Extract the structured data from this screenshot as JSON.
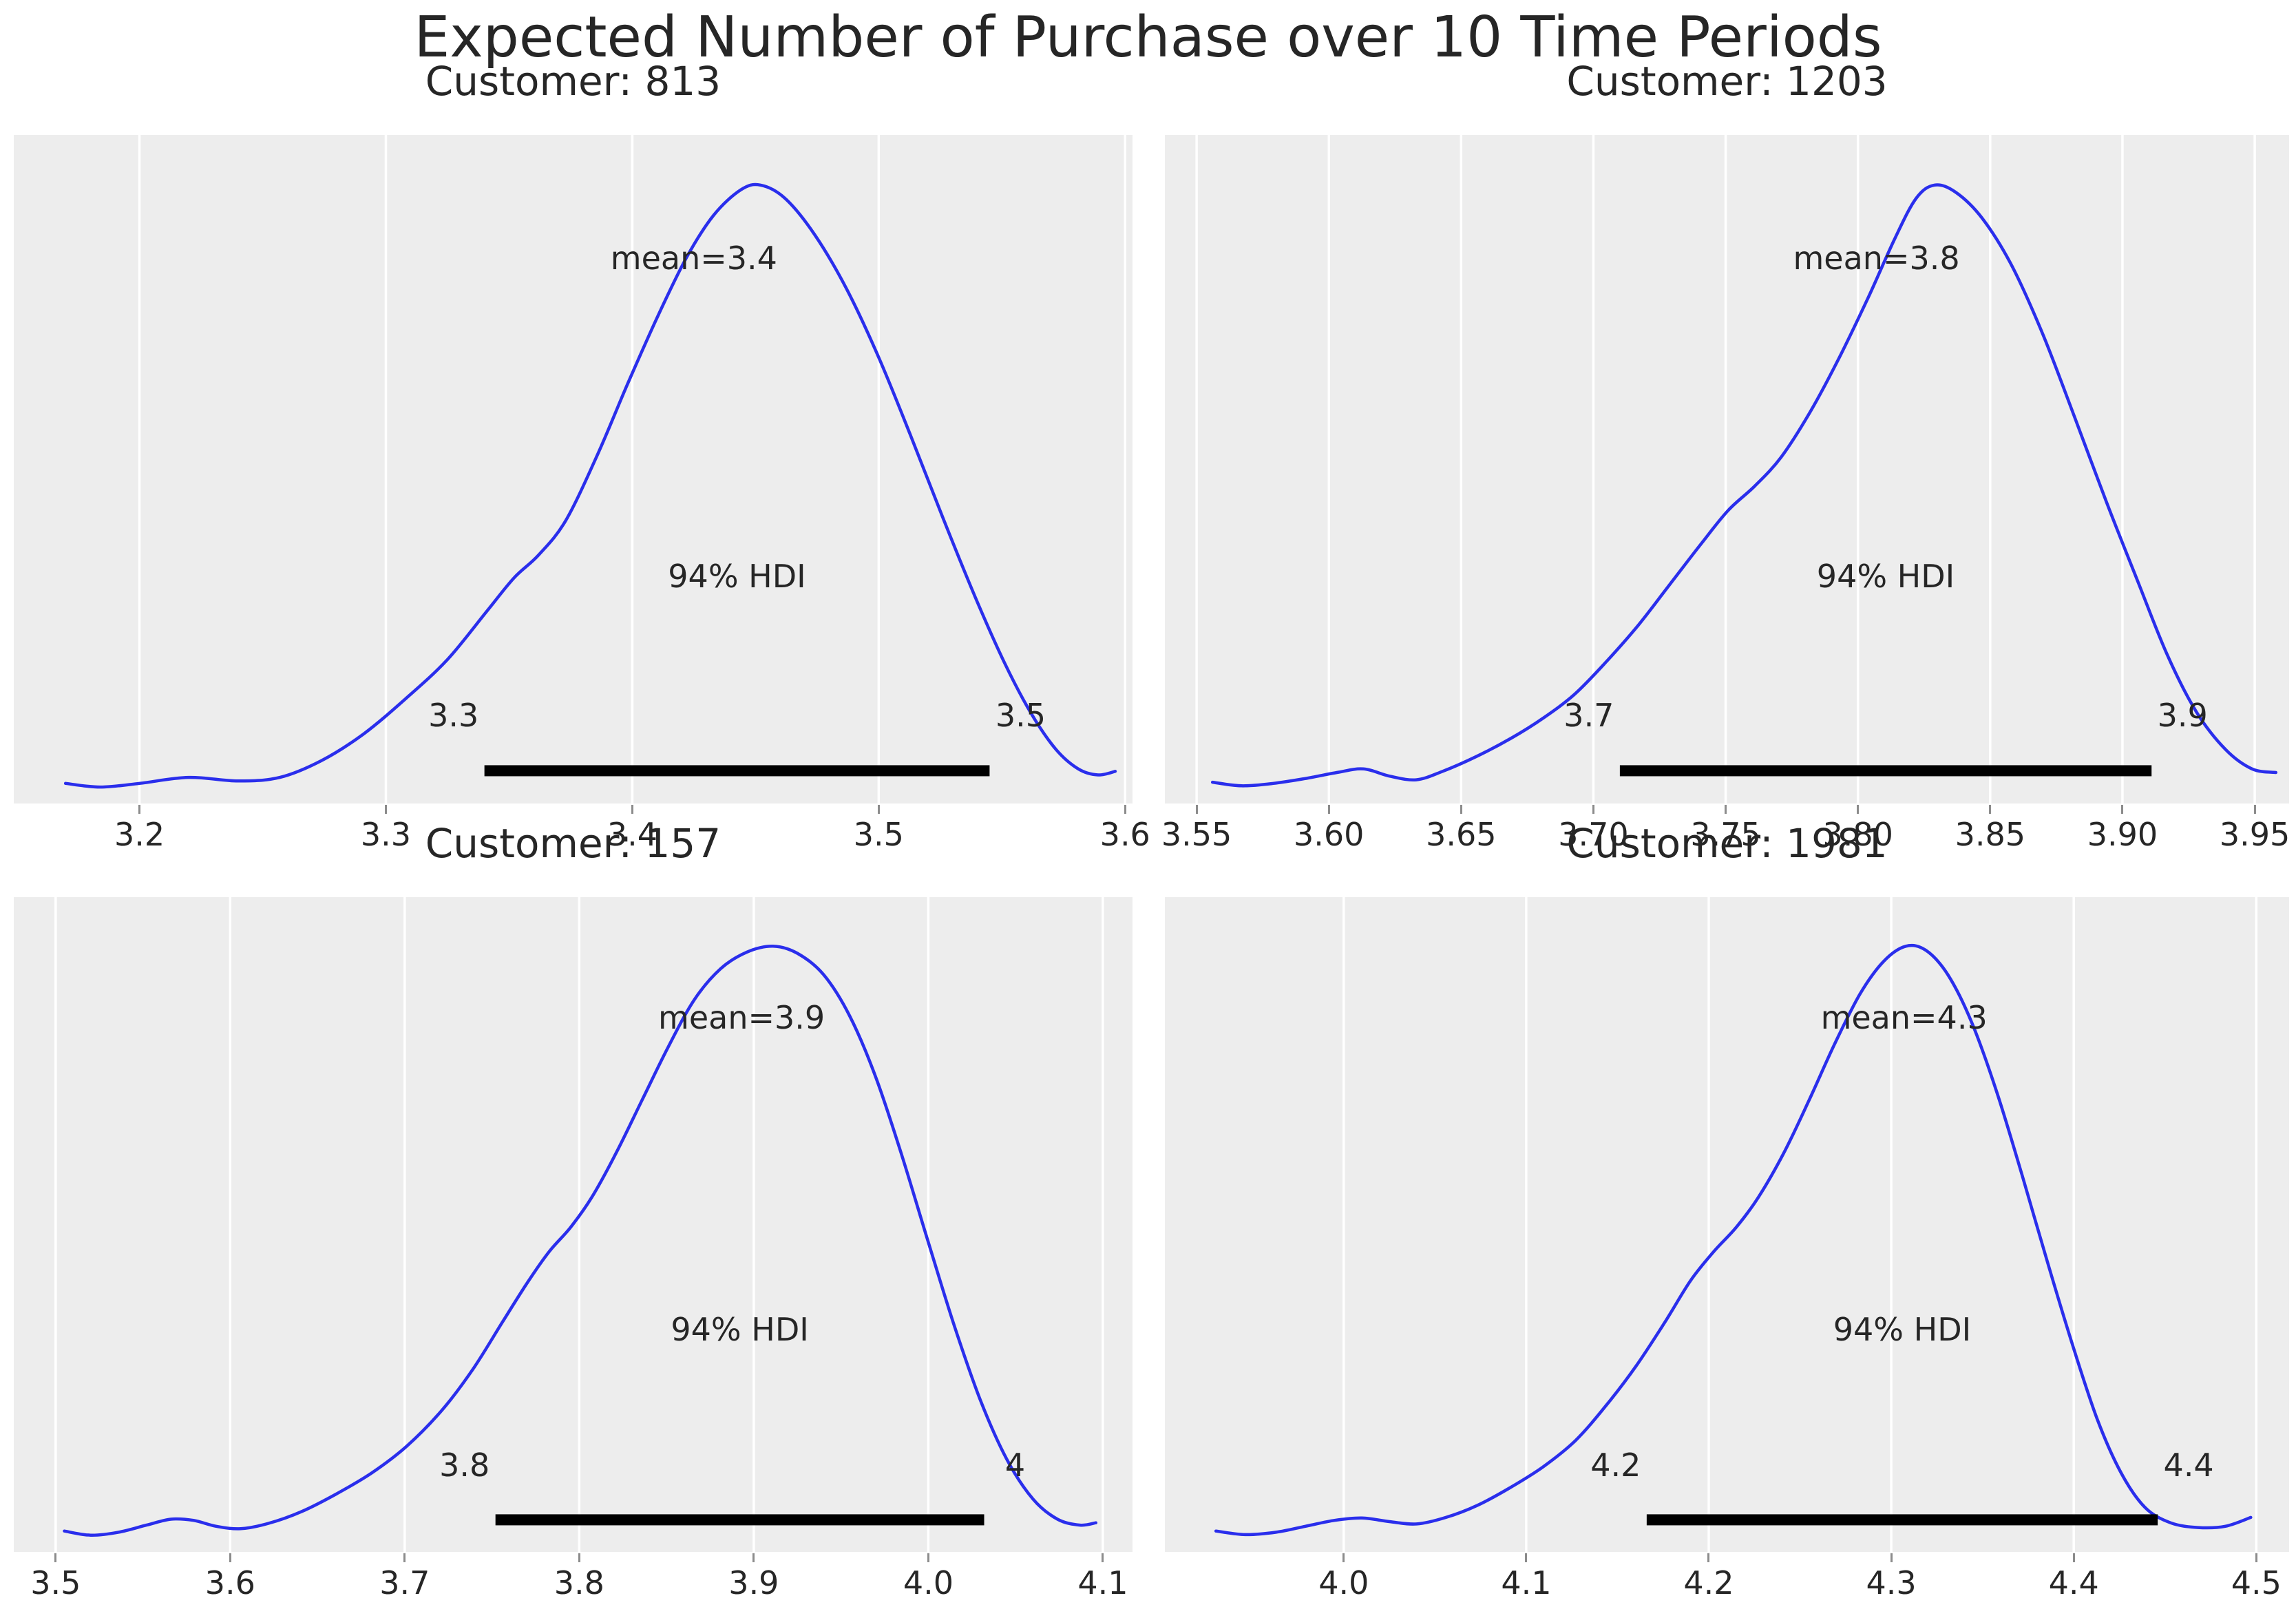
{
  "title": "Expected Number of Purchase over 10 Time Periods",
  "hdi_text": "94% HDI",
  "colors": {
    "curve": "#2a2eec",
    "panel_bg": "#ededed",
    "grid": "#ffffff",
    "text": "#262626",
    "tick_mark": "#8c8c8c",
    "hdi_bar": "#000000",
    "page_bg": "#ffffff"
  },
  "chart_data": [
    {
      "type": "line",
      "customer": "813",
      "title": "Customer: 813",
      "mean": 3.4,
      "mean_label": "mean=3.4",
      "mean_label_x": 3.425,
      "hdi_94": [
        3.34,
        3.545
      ],
      "hdi_low_label": "3.3",
      "hdi_high_label": "3.5",
      "xlim": [
        3.149,
        3.603
      ],
      "xticks": [
        {
          "v": 3.2,
          "label": "3.2"
        },
        {
          "v": 3.3,
          "label": "3.3"
        },
        {
          "v": 3.4,
          "label": "3.4"
        },
        {
          "v": 3.5,
          "label": "3.5"
        },
        {
          "v": 3.6,
          "label": "3.6"
        }
      ],
      "curve": [
        [
          3.17,
          0.01
        ],
        [
          3.184,
          0.004
        ],
        [
          3.2,
          0.01
        ],
        [
          3.22,
          0.02
        ],
        [
          3.24,
          0.014
        ],
        [
          3.257,
          0.02
        ],
        [
          3.274,
          0.048
        ],
        [
          3.291,
          0.092
        ],
        [
          3.308,
          0.15
        ],
        [
          3.325,
          0.215
        ],
        [
          3.341,
          0.295
        ],
        [
          3.352,
          0.35
        ],
        [
          3.362,
          0.388
        ],
        [
          3.373,
          0.445
        ],
        [
          3.386,
          0.555
        ],
        [
          3.398,
          0.67
        ],
        [
          3.41,
          0.78
        ],
        [
          3.422,
          0.88
        ],
        [
          3.433,
          0.95
        ],
        [
          3.444,
          0.992
        ],
        [
          3.452,
          1.0
        ],
        [
          3.462,
          0.978
        ],
        [
          3.474,
          0.918
        ],
        [
          3.487,
          0.828
        ],
        [
          3.5,
          0.715
        ],
        [
          3.513,
          0.585
        ],
        [
          3.526,
          0.45
        ],
        [
          3.539,
          0.32
        ],
        [
          3.551,
          0.21
        ],
        [
          3.562,
          0.125
        ],
        [
          3.572,
          0.066
        ],
        [
          3.581,
          0.034
        ],
        [
          3.589,
          0.024
        ],
        [
          3.596,
          0.03
        ]
      ]
    },
    {
      "type": "line",
      "customer": "1203",
      "title": "Customer: 1203",
      "mean": 3.8,
      "mean_label": "mean=3.8",
      "mean_label_x": 3.807,
      "hdi_94": [
        3.71,
        3.911
      ],
      "hdi_low_label": "3.7",
      "hdi_high_label": "3.9",
      "xlim": [
        3.538,
        3.963
      ],
      "xticks": [
        {
          "v": 3.55,
          "label": "3.55"
        },
        {
          "v": 3.6,
          "label": "3.60"
        },
        {
          "v": 3.65,
          "label": "3.65"
        },
        {
          "v": 3.7,
          "label": "3.70"
        },
        {
          "v": 3.75,
          "label": "3.75"
        },
        {
          "v": 3.8,
          "label": "3.80"
        },
        {
          "v": 3.85,
          "label": "3.85"
        },
        {
          "v": 3.9,
          "label": "3.90"
        },
        {
          "v": 3.95,
          "label": "3.95"
        }
      ],
      "curve": [
        [
          3.556,
          0.012
        ],
        [
          3.567,
          0.006
        ],
        [
          3.579,
          0.01
        ],
        [
          3.591,
          0.018
        ],
        [
          3.603,
          0.028
        ],
        [
          3.613,
          0.034
        ],
        [
          3.623,
          0.022
        ],
        [
          3.633,
          0.016
        ],
        [
          3.643,
          0.03
        ],
        [
          3.656,
          0.055
        ],
        [
          3.669,
          0.085
        ],
        [
          3.681,
          0.118
        ],
        [
          3.693,
          0.158
        ],
        [
          3.705,
          0.212
        ],
        [
          3.717,
          0.272
        ],
        [
          3.729,
          0.34
        ],
        [
          3.741,
          0.408
        ],
        [
          3.751,
          0.462
        ],
        [
          3.761,
          0.502
        ],
        [
          3.771,
          0.55
        ],
        [
          3.782,
          0.625
        ],
        [
          3.793,
          0.715
        ],
        [
          3.804,
          0.815
        ],
        [
          3.814,
          0.912
        ],
        [
          3.822,
          0.978
        ],
        [
          3.829,
          1.0
        ],
        [
          3.837,
          0.988
        ],
        [
          3.847,
          0.945
        ],
        [
          3.858,
          0.868
        ],
        [
          3.87,
          0.752
        ],
        [
          3.882,
          0.615
        ],
        [
          3.894,
          0.475
        ],
        [
          3.906,
          0.342
        ],
        [
          3.917,
          0.222
        ],
        [
          3.928,
          0.128
        ],
        [
          3.939,
          0.066
        ],
        [
          3.949,
          0.034
        ],
        [
          3.958,
          0.028
        ]
      ]
    },
    {
      "type": "line",
      "customer": "157",
      "title": "Customer: 157",
      "mean": 3.9,
      "mean_label": "mean=3.9",
      "mean_label_x": 3.893,
      "hdi_94": [
        3.752,
        4.032
      ],
      "hdi_low_label": "3.8",
      "hdi_high_label": "4",
      "xlim": [
        3.476,
        4.117
      ],
      "xticks": [
        {
          "v": 3.5,
          "label": "3.5"
        },
        {
          "v": 3.6,
          "label": "3.6"
        },
        {
          "v": 3.7,
          "label": "3.7"
        },
        {
          "v": 3.8,
          "label": "3.8"
        },
        {
          "v": 3.9,
          "label": "3.9"
        },
        {
          "v": 4.0,
          "label": "4.0"
        },
        {
          "v": 4.1,
          "label": "4.1"
        }
      ],
      "curve": [
        [
          3.505,
          0.012
        ],
        [
          3.52,
          0.005
        ],
        [
          3.536,
          0.01
        ],
        [
          3.552,
          0.022
        ],
        [
          3.566,
          0.032
        ],
        [
          3.579,
          0.03
        ],
        [
          3.592,
          0.02
        ],
        [
          3.606,
          0.016
        ],
        [
          3.622,
          0.025
        ],
        [
          3.641,
          0.045
        ],
        [
          3.661,
          0.075
        ],
        [
          3.681,
          0.11
        ],
        [
          3.701,
          0.155
        ],
        [
          3.721,
          0.215
        ],
        [
          3.739,
          0.285
        ],
        [
          3.756,
          0.365
        ],
        [
          3.771,
          0.435
        ],
        [
          3.783,
          0.485
        ],
        [
          3.795,
          0.525
        ],
        [
          3.807,
          0.575
        ],
        [
          3.821,
          0.65
        ],
        [
          3.836,
          0.74
        ],
        [
          3.851,
          0.83
        ],
        [
          3.866,
          0.91
        ],
        [
          3.881,
          0.962
        ],
        [
          3.896,
          0.99
        ],
        [
          3.911,
          1.0
        ],
        [
          3.925,
          0.988
        ],
        [
          3.94,
          0.952
        ],
        [
          3.955,
          0.882
        ],
        [
          3.97,
          0.778
        ],
        [
          3.985,
          0.645
        ],
        [
          4.0,
          0.5
        ],
        [
          4.015,
          0.358
        ],
        [
          4.03,
          0.232
        ],
        [
          4.045,
          0.133
        ],
        [
          4.06,
          0.066
        ],
        [
          4.074,
          0.032
        ],
        [
          4.087,
          0.022
        ],
        [
          4.096,
          0.026
        ]
      ]
    },
    {
      "type": "line",
      "customer": "1981",
      "title": "Customer: 1981",
      "mean": 4.3,
      "mean_label": "mean=4.3",
      "mean_label_x": 4.307,
      "hdi_94": [
        4.166,
        4.446
      ],
      "hdi_low_label": "4.2",
      "hdi_high_label": "4.4",
      "xlim": [
        3.902,
        4.518
      ],
      "xticks": [
        {
          "v": 4.0,
          "label": "4.0"
        },
        {
          "v": 4.1,
          "label": "4.1"
        },
        {
          "v": 4.2,
          "label": "4.2"
        },
        {
          "v": 4.3,
          "label": "4.3"
        },
        {
          "v": 4.4,
          "label": "4.4"
        },
        {
          "v": 4.5,
          "label": "4.5"
        }
      ],
      "curve": [
        [
          3.93,
          0.012
        ],
        [
          3.946,
          0.006
        ],
        [
          3.963,
          0.01
        ],
        [
          3.979,
          0.02
        ],
        [
          3.995,
          0.03
        ],
        [
          4.01,
          0.034
        ],
        [
          4.025,
          0.028
        ],
        [
          4.04,
          0.024
        ],
        [
          4.056,
          0.035
        ],
        [
          4.073,
          0.055
        ],
        [
          4.091,
          0.085
        ],
        [
          4.109,
          0.12
        ],
        [
          4.127,
          0.165
        ],
        [
          4.144,
          0.225
        ],
        [
          4.16,
          0.29
        ],
        [
          4.176,
          0.365
        ],
        [
          4.19,
          0.435
        ],
        [
          4.203,
          0.485
        ],
        [
          4.215,
          0.525
        ],
        [
          4.227,
          0.575
        ],
        [
          4.241,
          0.65
        ],
        [
          4.255,
          0.74
        ],
        [
          4.269,
          0.835
        ],
        [
          4.283,
          0.92
        ],
        [
          4.296,
          0.975
        ],
        [
          4.308,
          1.0
        ],
        [
          4.319,
          0.993
        ],
        [
          4.331,
          0.952
        ],
        [
          4.344,
          0.872
        ],
        [
          4.358,
          0.752
        ],
        [
          4.372,
          0.61
        ],
        [
          4.386,
          0.462
        ],
        [
          4.4,
          0.32
        ],
        [
          4.413,
          0.2
        ],
        [
          4.426,
          0.11
        ],
        [
          4.439,
          0.052
        ],
        [
          4.453,
          0.026
        ],
        [
          4.468,
          0.018
        ],
        [
          4.483,
          0.02
        ],
        [
          4.497,
          0.035
        ]
      ]
    }
  ]
}
